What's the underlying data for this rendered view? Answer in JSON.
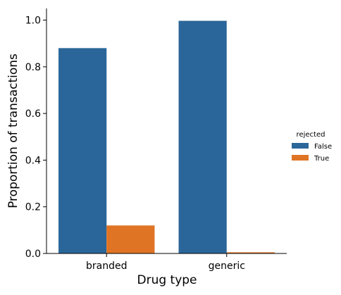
{
  "chart_data": {
    "type": "bar",
    "xlabel": "Drug type",
    "ylabel": "Proportion of transactions",
    "categories": [
      "branded",
      "generic"
    ],
    "series": [
      {
        "name": "False",
        "values": [
          0.88,
          0.997
        ],
        "color": "#2a6699"
      },
      {
        "name": "True",
        "values": [
          0.12,
          0.005
        ],
        "color": "#e07425"
      }
    ],
    "ylim": [
      0,
      1.05
    ],
    "yticks": [
      0.0,
      0.2,
      0.4,
      0.6,
      0.8,
      1.0
    ],
    "ytick_labels": [
      "0.0",
      "0.2",
      "0.4",
      "0.6",
      "0.8",
      "1.0"
    ],
    "grid": false,
    "legend": {
      "title": "rejected",
      "placement": "right"
    }
  }
}
